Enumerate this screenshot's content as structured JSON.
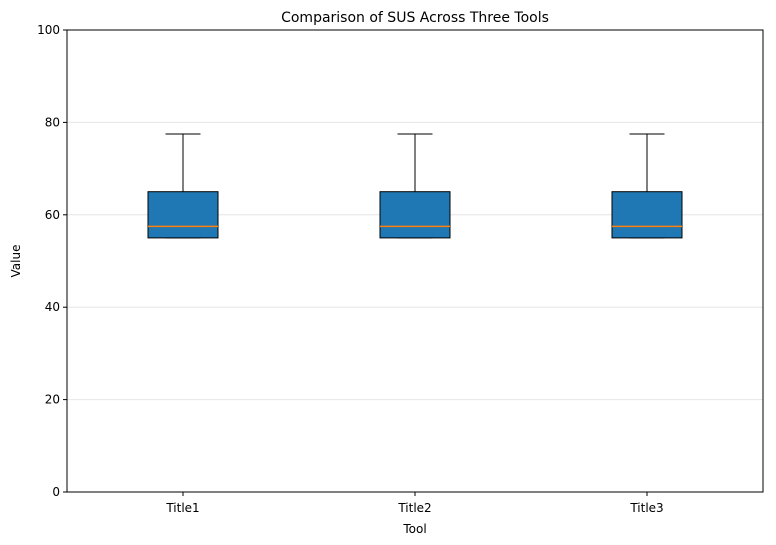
{
  "chart_data": {
    "type": "box",
    "title": "Comparison of SUS Across Three Tools",
    "xlabel": "Tool",
    "ylabel": "Value",
    "categories": [
      "Title1",
      "Title2",
      "Title3"
    ],
    "ylim": [
      0,
      100
    ],
    "yticks": [
      0,
      20,
      40,
      60,
      80,
      100
    ],
    "grid": "y-axis, light",
    "boxes": [
      {
        "category": "Title1",
        "whisker_low": 55,
        "q1": 55,
        "median": 57.5,
        "q3": 65,
        "whisker_high": 77.5
      },
      {
        "category": "Title2",
        "whisker_low": 55,
        "q1": 55,
        "median": 57.5,
        "q3": 65,
        "whisker_high": 77.5
      },
      {
        "category": "Title3",
        "whisker_low": 55,
        "q1": 55,
        "median": 57.5,
        "q3": 65,
        "whisker_high": 77.5
      }
    ],
    "colors": {
      "box_fill": "#1f77b4",
      "box_edge": "#000000",
      "median": "#ff7f0e",
      "whisker": "#000000",
      "grid": "#e6e6e6",
      "axis": "#000000"
    }
  }
}
